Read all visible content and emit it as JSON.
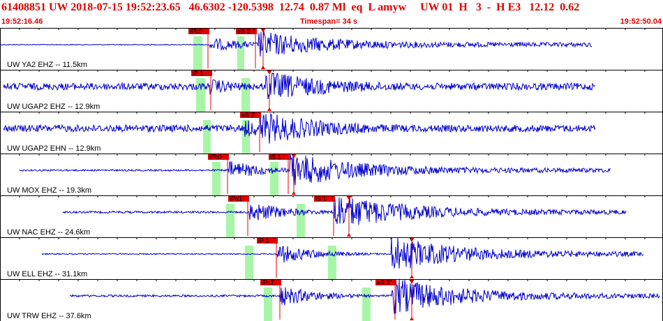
{
  "header": {
    "summary": "61408851 UW 2018-07-15 19:52:23.65   46.6302 -120.5398  12.74  0.87 Ml  eq  L amyw     UW 01  H   3  -  H E3   12.12  0.62",
    "start_time": "19:52:16.46",
    "timespan": "Timespan=  34 s",
    "end_time": "19:52:50.04"
  },
  "colors": {
    "trace": "#0000cc",
    "pick": "#e00000",
    "window": "#a8f5a8",
    "frame": "#000000"
  },
  "traces": [
    {
      "label": "UW YA2 EHZ -- 11.5km",
      "p_pick": "iPc0",
      "s_pick": "eS 2",
      "onset": 0.313
    },
    {
      "label": "UW UGAP2 EHZ -- 12.9km",
      "p_pick": "iP 1",
      "s_pick": "",
      "onset": 0.318
    },
    {
      "label": "UW UGAP2 EHN -- 12.9km",
      "p_pick": "",
      "s_pick": "eS 2",
      "onset": 0.38
    },
    {
      "label": "UW MOX EHZ -- 19.3km",
      "p_pick": "iPc0",
      "s_pick": "iS 1",
      "onset": 0.345
    },
    {
      "label": "UW NAC EHZ -- 24.6km",
      "p_pick": "iPd1",
      "s_pick": "iS 1",
      "onset": 0.375
    },
    {
      "label": "UW ELL EHZ -- 31.1km",
      "p_pick": "iP 1",
      "s_pick": "",
      "onset": 0.42
    },
    {
      "label": "UW TRW EHZ -- 37.6km",
      "p_pick": "iPc1",
      "s_pick": "eS 2",
      "onset": 0.42
    }
  ]
}
